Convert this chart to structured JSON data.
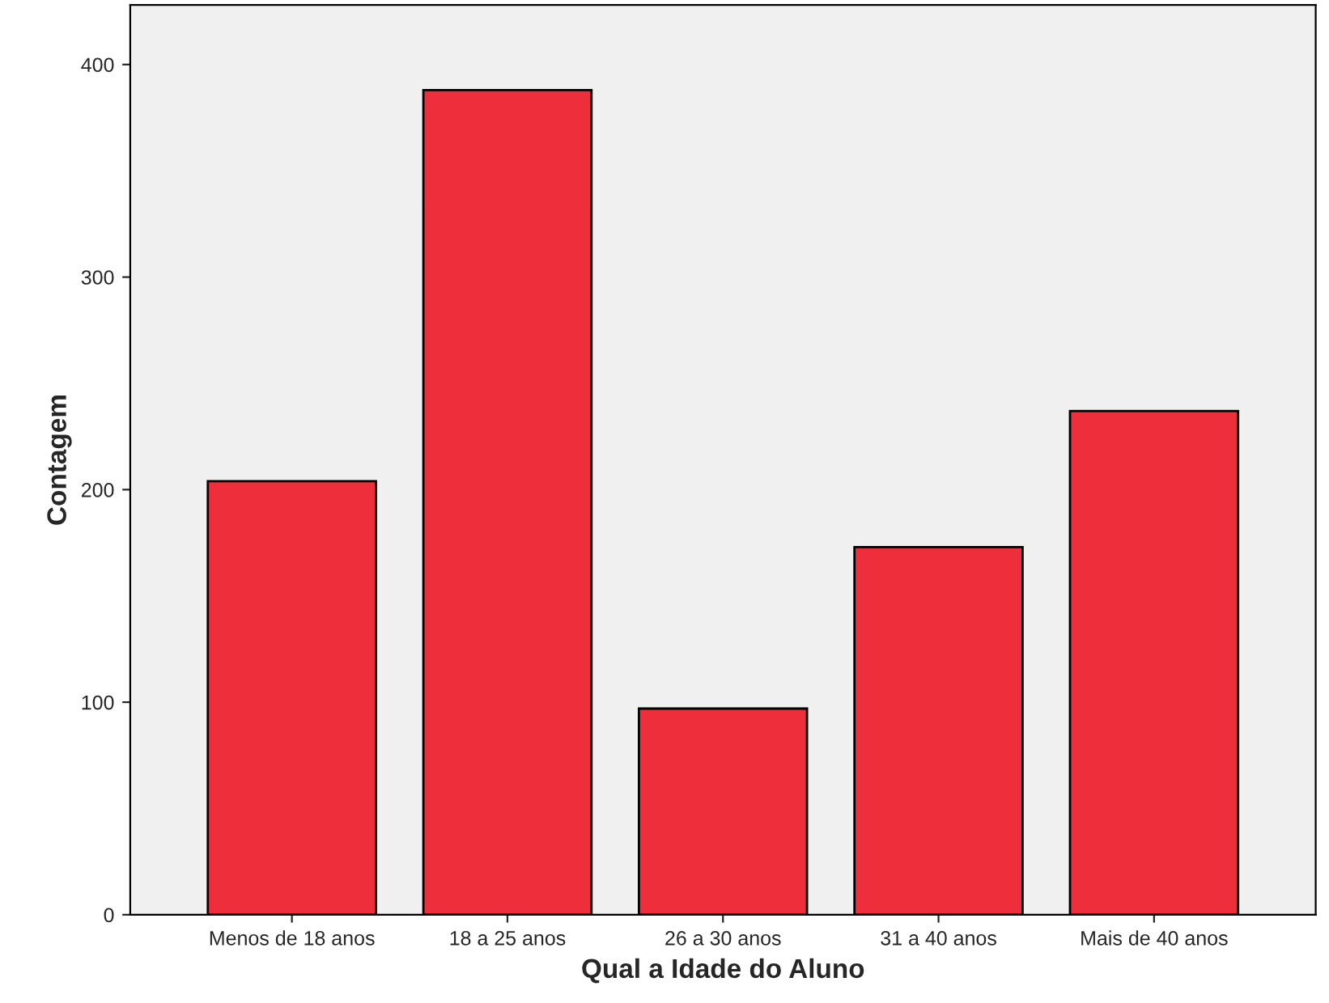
{
  "chart_data": {
    "type": "bar",
    "xlabel": "Qual a Idade do Aluno",
    "ylabel": "Contagem",
    "categories": [
      "Menos de 18 anos",
      "18 a 25 anos",
      "26 a 30 anos",
      "31 a 40 anos",
      "Mais de 40 anos"
    ],
    "values": [
      204,
      388,
      97,
      173,
      237
    ],
    "color": "#ee2e3a",
    "ylim": [
      0,
      428
    ],
    "yticks": [
      0,
      100,
      200,
      300,
      400
    ],
    "grid": false
  }
}
